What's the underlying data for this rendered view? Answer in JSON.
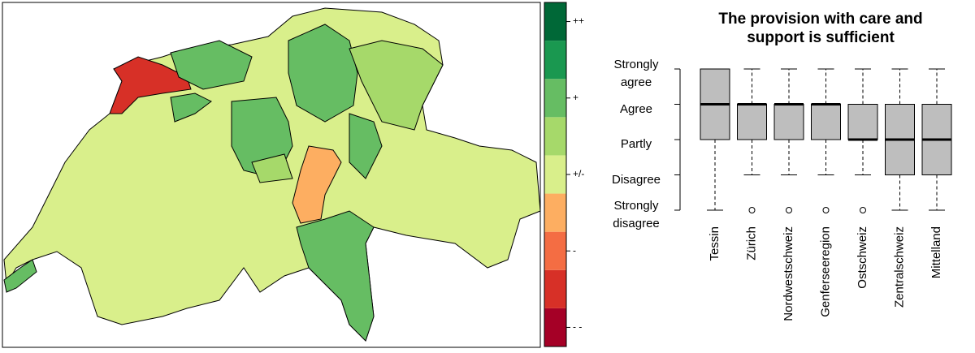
{
  "chart_data": [
    {
      "type": "map",
      "colors": [
        "#a50026",
        "#d73027",
        "#f46d43",
        "#fdae61",
        "#d9ef8b",
        "#a6d96a",
        "#66bd63",
        "#1a9850",
        "#006837"
      ],
      "lim": [
        -4.5,
        4.5
      ],
      "ticks": [
        {
          "value": 4,
          "label": "++"
        },
        {
          "value": 2,
          "label": "+"
        },
        {
          "value": 0,
          "label": "+/-"
        },
        {
          "value": -2,
          "label": "-"
        },
        {
          "value": -4,
          "label": "- -"
        }
      ]
    },
    {
      "type": "box",
      "title": "The provision with care and support is sufficient",
      "categories": [
        "Tessin",
        "Zürich",
        "Nordwestschweiz",
        "Genferseeregion",
        "Ostschweiz",
        "Zentralschweiz",
        "Mittelland"
      ],
      "min": [
        1,
        2,
        2,
        2,
        2,
        1,
        1
      ],
      "q1": [
        3,
        3,
        3,
        3,
        3,
        2,
        2
      ],
      "median": [
        4,
        4,
        4,
        4,
        3,
        3,
        3
      ],
      "q3": [
        5,
        4,
        4,
        4,
        4,
        4,
        4
      ],
      "max": [
        5,
        5,
        5,
        5,
        5,
        5,
        5
      ],
      "outliers": [
        [],
        [
          1
        ],
        [
          1
        ],
        [
          1
        ],
        [
          1
        ],
        [],
        []
      ],
      "color": "#bebebe",
      "ylim": [
        1,
        5
      ],
      "yticks": [
        {
          "value": 5,
          "label": "Strongly agree"
        },
        {
          "value": 4,
          "label": "Agree"
        },
        {
          "value": 3,
          "label": "Partly"
        },
        {
          "value": 2,
          "label": "Disagree"
        },
        {
          "value": 1,
          "label": "Strongly disagree"
        }
      ]
    }
  ]
}
